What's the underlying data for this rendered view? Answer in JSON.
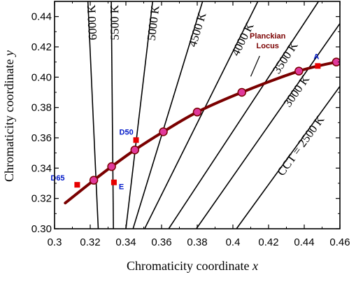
{
  "chart_data": {
    "type": "line",
    "title": "",
    "xlabel": "Chromaticity coordinate",
    "xlabel_var": "x",
    "ylabel": "Chromaticity coordinate",
    "ylabel_var": "y",
    "xlim": [
      0.3,
      0.46
    ],
    "ylim": [
      0.3,
      0.45
    ],
    "xticks": [
      "0.3",
      "0.32",
      "0.34",
      "0.36",
      "0.38",
      "0.4",
      "0.42",
      "0.44",
      "0.46"
    ],
    "yticks": [
      "0.30",
      "0.32",
      "0.34",
      "0.36",
      "0.38",
      "0.40",
      "0.42",
      "0.44"
    ],
    "grid": false,
    "planckian_locus": {
      "name": "Planckian Locus",
      "color": "#7a0000",
      "points": [
        [
          0.306,
          0.317
        ],
        [
          0.322,
          0.332
        ],
        [
          0.332,
          0.341
        ],
        [
          0.345,
          0.352
        ],
        [
          0.361,
          0.364
        ],
        [
          0.38,
          0.377
        ],
        [
          0.405,
          0.39
        ],
        [
          0.437,
          0.404
        ],
        [
          0.458,
          0.41
        ]
      ],
      "marker_color": "#e0399c"
    },
    "isotherms": [
      {
        "label": "6000 K",
        "x1": 0.3245,
        "y1": 0.3,
        "x2": 0.3187,
        "y2": 0.45
      },
      {
        "label": "5500 K",
        "x1": 0.333,
        "y1": 0.3,
        "x2": 0.3318,
        "y2": 0.45
      },
      {
        "label": "5000 K",
        "x1": 0.34,
        "y1": 0.3,
        "x2": 0.355,
        "y2": 0.45
      },
      {
        "label": "4500 K",
        "x1": 0.344,
        "y1": 0.3,
        "x2": 0.383,
        "y2": 0.45
      },
      {
        "label": "4000 K",
        "x1": 0.3505,
        "y1": 0.3,
        "x2": 0.414,
        "y2": 0.45
      },
      {
        "label": "3500 K",
        "x1": 0.364,
        "y1": 0.3,
        "x2": 0.448,
        "y2": 0.45
      },
      {
        "label": "3000 K",
        "x1": 0.3795,
        "y1": 0.3,
        "x2": 0.46,
        "y2": 0.4354
      },
      {
        "label": "CCT = 2500 K",
        "x1": 0.402,
        "y1": 0.3,
        "x2": 0.46,
        "y2": 0.394
      }
    ],
    "isotherm_label_color": "#000000",
    "reference_points": [
      {
        "label": "D65",
        "x": 0.3127,
        "y": 0.329
      },
      {
        "label": "E",
        "x": 0.3333,
        "y": 0.3306
      },
      {
        "label": "D50",
        "x": 0.3457,
        "y": 0.3585
      },
      {
        "label": "A",
        "x": 0.4476,
        "y": 0.4074
      }
    ],
    "reference_point_color": "#e60000"
  }
}
